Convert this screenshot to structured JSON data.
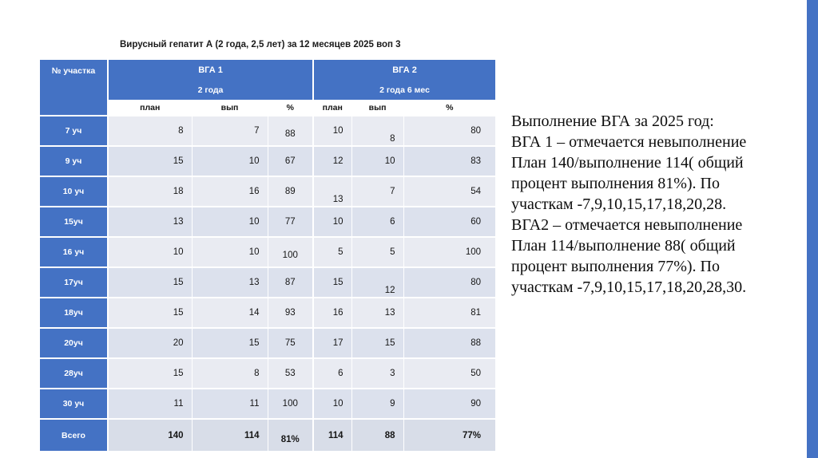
{
  "slide": {
    "title": "Вирусный гепатит А  (2 года,  2,5 лет) за 12 месяцев 2025 воп 3"
  },
  "table": {
    "corner_header": "№ участка",
    "groups": [
      {
        "label": "ВГА 1",
        "sublabel": "2 года"
      },
      {
        "label": "ВГА 2",
        "sublabel": "2 года  6 мес"
      }
    ],
    "col_headers": [
      "план",
      "вып",
      "%",
      "план",
      "вып",
      "%"
    ],
    "rows": [
      {
        "label": "7 уч",
        "cells": [
          "8",
          "7",
          {
            "v": "88",
            "shift": 1
          },
          "10",
          {
            "v": "8",
            "shift": 2
          },
          "80"
        ]
      },
      {
        "label": "9 уч",
        "cells": [
          "15",
          "10",
          "67",
          "12",
          "10",
          "83"
        ]
      },
      {
        "label": "10 уч",
        "cells": [
          "18",
          "16",
          "89",
          {
            "v": "13",
            "shift": 2
          },
          "7",
          "54"
        ]
      },
      {
        "label": "15уч",
        "cells": [
          "13",
          "10",
          "77",
          "10",
          "6",
          "60"
        ]
      },
      {
        "label": "16 уч",
        "cells": [
          "10",
          "10",
          {
            "v": "100",
            "shift": 1
          },
          "5",
          "5",
          "100"
        ]
      },
      {
        "label": "17уч",
        "cells": [
          "15",
          "13",
          "87",
          "15",
          {
            "v": "12",
            "shift": 2
          },
          "80"
        ]
      },
      {
        "label": "18уч",
        "cells": [
          "15",
          "14",
          "93",
          "16",
          "13",
          "81"
        ]
      },
      {
        "label": "20уч",
        "cells": [
          "20",
          "15",
          "75",
          "17",
          "15",
          "88"
        ]
      },
      {
        "label": "28уч",
        "cells": [
          "15",
          "8",
          "53",
          "6",
          "3",
          "50"
        ]
      },
      {
        "label": "30 уч",
        "cells": [
          "11",
          "11",
          "100",
          "10",
          "9",
          "90"
        ]
      },
      {
        "label": "Всего",
        "total": true,
        "cells": [
          "140",
          "114",
          {
            "v": "81%",
            "shift": 1
          },
          "114",
          "88",
          "77%"
        ]
      }
    ]
  },
  "annotation": {
    "lines": [
      "Выполнение ВГА за 2025 год:",
      "ВГА 1 – отмечается невыполнение",
      "План 140/выполнение 114( общий",
      "процент выполнения 81%). По",
      "участкам -7,9,10,15,17,18,20,28.",
      "ВГА2 – отмечается невыполнение",
      "План 114/выполнение 88( общий",
      "процент выполнения 77%). По",
      "участкам -7,9,10,15,17,18,20,28,30."
    ]
  },
  "colors": {
    "header_blue": "#4472C4",
    "band_light": "#E9EBF2",
    "band_dark": "#DCE1ED",
    "total_row": "#D8DDE8",
    "right_stripe": "#4472C4"
  }
}
